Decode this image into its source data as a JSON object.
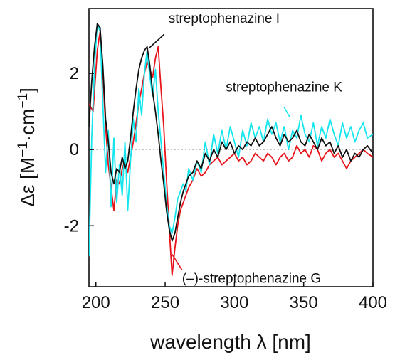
{
  "chart_data": {
    "type": "line",
    "title": "",
    "xlabel": "wavelength λ [nm]",
    "ylabel_main": "Δε [M",
    "ylabel_sup1": "−1",
    "ylabel_mid": "·cm",
    "ylabel_sup2": "−1",
    "ylabel_end": "]",
    "xlim": [
      195,
      400
    ],
    "ylim": [
      -3.6,
      3.7
    ],
    "x_ticks": [
      200,
      250,
      300,
      350,
      400
    ],
    "x_tick_labels": [
      "200",
      "250",
      "300",
      "350",
      "400"
    ],
    "y_ticks": [
      -2,
      0,
      2
    ],
    "y_tick_labels": [
      "-2",
      "0",
      "2"
    ],
    "zero_line": true,
    "grid": false,
    "legend": "none",
    "series": [
      {
        "name": "(–)-streptophenazine G",
        "color": "#e8141c",
        "x": [
          195,
          198,
          201,
          203,
          205,
          207,
          209,
          211,
          213,
          215,
          217,
          219,
          221,
          223,
          225,
          227,
          229,
          231,
          233,
          235,
          237,
          239,
          241,
          243,
          245,
          247,
          249,
          251,
          253,
          255,
          257,
          259,
          261,
          263,
          265,
          267,
          270,
          273,
          276,
          279,
          282,
          285,
          288,
          291,
          294,
          297,
          300,
          303,
          306,
          309,
          312,
          315,
          318,
          321,
          324,
          327,
          330,
          333,
          336,
          339,
          342,
          345,
          348,
          351,
          354,
          357,
          360,
          363,
          366,
          369,
          372,
          375,
          378,
          381,
          384,
          387,
          390,
          393,
          396,
          400
        ],
        "y": [
          1.2,
          1.0,
          2.6,
          3.1,
          2.0,
          0.6,
          -0.4,
          -1.0,
          -1.6,
          -0.8,
          -0.9,
          -0.5,
          -0.3,
          -0.6,
          -0.2,
          0.2,
          0.7,
          1.2,
          1.6,
          2.0,
          2.3,
          2.1,
          1.9,
          2.4,
          2.7,
          1.6,
          0.6,
          -0.8,
          -2.1,
          -3.3,
          -2.6,
          -2.0,
          -1.6,
          -1.4,
          -1.2,
          -1.0,
          -0.8,
          -0.5,
          -0.7,
          -0.6,
          -0.4,
          -0.3,
          -0.2,
          -0.4,
          -0.3,
          -0.2,
          -0.1,
          -0.3,
          -0.2,
          -0.4,
          -0.3,
          -0.1,
          -0.2,
          -0.3,
          -0.1,
          -0.2,
          -0.4,
          -0.2,
          -0.1,
          -0.3,
          -0.2,
          0.1,
          -0.1,
          0.0,
          -0.2,
          0.1,
          0.0,
          -0.3,
          -0.1,
          0.0,
          -0.2,
          -0.1,
          -0.3,
          -0.5,
          -0.3,
          -0.2,
          -0.1,
          0.0,
          -0.1,
          -0.2
        ]
      },
      {
        "name": "streptophenazine K",
        "color": "#15e6ee",
        "x": [
          195,
          197,
          199,
          201,
          203,
          205,
          207,
          209,
          211,
          213,
          215,
          217,
          219,
          221,
          223,
          225,
          227,
          229,
          231,
          233,
          235,
          237,
          239,
          241,
          243,
          245,
          247,
          249,
          251,
          253,
          255,
          257,
          259,
          261,
          263,
          265,
          267,
          270,
          273,
          276,
          279,
          282,
          285,
          288,
          291,
          294,
          297,
          300,
          303,
          306,
          309,
          312,
          315,
          318,
          321,
          324,
          327,
          330,
          333,
          336,
          339,
          342,
          345,
          348,
          351,
          354,
          357,
          360,
          363,
          366,
          369,
          372,
          375,
          378,
          381,
          384,
          387,
          390,
          393,
          396,
          400
        ],
        "y": [
          -2.8,
          0.3,
          2.2,
          3.3,
          3.1,
          1.2,
          -0.6,
          0.5,
          -1.5,
          0.3,
          -1.4,
          -0.4,
          -1.2,
          0.2,
          -1.6,
          -0.3,
          0.8,
          0.2,
          1.6,
          0.9,
          2.0,
          2.6,
          1.9,
          1.4,
          2.1,
          1.0,
          0.2,
          -0.6,
          -1.4,
          -2.0,
          -2.2,
          -1.8,
          -1.3,
          -1.1,
          -0.9,
          -1.1,
          -0.5,
          -0.8,
          -0.3,
          -0.6,
          0.2,
          -0.4,
          0.4,
          -0.1,
          0.5,
          0.0,
          0.6,
          0.2,
          -0.2,
          0.5,
          0.1,
          0.7,
          0.3,
          0.6,
          0.2,
          0.8,
          0.4,
          0.7,
          0.2,
          0.6,
          0.0,
          0.5,
          0.3,
          0.9,
          0.4,
          0.2,
          0.7,
          0.1,
          0.6,
          0.3,
          0.8,
          0.4,
          0.1,
          0.7,
          0.3,
          0.6,
          0.2,
          0.5,
          0.7,
          0.3,
          0.4
        ]
      },
      {
        "name": "streptophenazine I",
        "color": "#111111",
        "x": [
          195,
          197,
          199,
          201,
          203,
          205,
          207,
          209,
          211,
          213,
          215,
          217,
          219,
          221,
          223,
          225,
          227,
          229,
          231,
          233,
          235,
          237,
          239,
          241,
          243,
          245,
          247,
          249,
          251,
          253,
          255,
          257,
          259,
          261,
          263,
          265,
          267,
          270,
          273,
          276,
          279,
          282,
          285,
          288,
          291,
          294,
          297,
          300,
          303,
          306,
          309,
          312,
          315,
          318,
          321,
          324,
          327,
          330,
          333,
          336,
          339,
          342,
          345,
          348,
          351,
          354,
          357,
          360,
          363,
          366,
          369,
          372,
          375,
          378,
          381,
          384,
          387,
          390,
          393,
          396,
          400
        ],
        "y": [
          0.6,
          1.8,
          2.7,
          3.3,
          3.2,
          2.2,
          0.8,
          0.2,
          -0.6,
          -0.9,
          -0.5,
          -0.6,
          -0.2,
          -0.5,
          -0.3,
          0.3,
          1.0,
          1.6,
          2.1,
          2.4,
          2.6,
          2.7,
          2.2,
          1.5,
          1.0,
          0.4,
          -0.3,
          -0.9,
          -1.6,
          -2.1,
          -2.4,
          -2.2,
          -1.8,
          -1.4,
          -1.1,
          -0.9,
          -0.7,
          -0.6,
          -0.3,
          -0.5,
          -0.1,
          -0.3,
          0.0,
          -0.2,
          0.2,
          0.0,
          0.2,
          -0.1,
          0.1,
          0.0,
          0.2,
          0.1,
          0.3,
          0.1,
          0.2,
          0.4,
          0.6,
          0.3,
          0.1,
          0.4,
          0.2,
          0.3,
          0.5,
          0.2,
          0.1,
          0.4,
          0.2,
          0.0,
          0.3,
          0.1,
          0.2,
          -0.1,
          0.1,
          -0.2,
          0.0,
          -0.3,
          -0.1,
          -0.2,
          0.0,
          0.1,
          -0.1
        ]
      }
    ],
    "annotations": [
      {
        "text": "streptophenazine I",
        "series": "streptophenazine I",
        "target_x": 238,
        "target_y": 2.65
      },
      {
        "text": "streptophenazine K",
        "series": "streptophenazine K",
        "target_x": 340,
        "target_y": 0.85
      },
      {
        "text": "(–)-streptophenazine G",
        "series": "(–)-streptophenazine G",
        "target_x": 255,
        "target_y": -2.75
      }
    ]
  }
}
